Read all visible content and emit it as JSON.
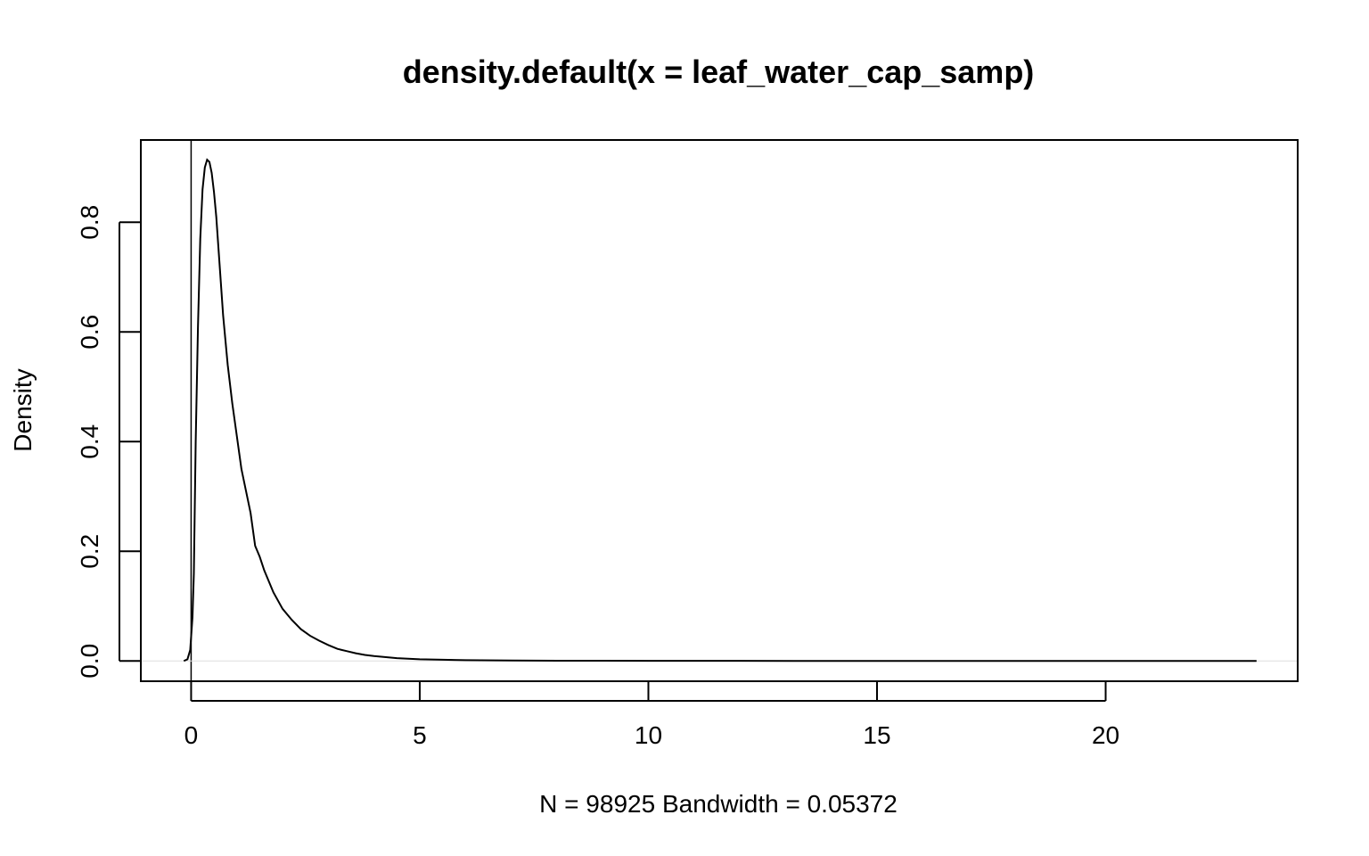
{
  "chart_data": {
    "type": "line",
    "title": "density.default(x = leaf_water_cap_samp)",
    "xlabel": "N = 98925   Bandwidth = 0.05372",
    "ylabel": "Density",
    "xlim": [
      -1.1,
      24.2
    ],
    "ylim": [
      -0.037,
      0.95
    ],
    "x_ticks": [
      0,
      5,
      10,
      15,
      20
    ],
    "x_tick_labels": [
      "0",
      "5",
      "10",
      "15",
      "20"
    ],
    "y_ticks": [
      0.0,
      0.2,
      0.4,
      0.6,
      0.8
    ],
    "y_tick_labels": [
      "0.0",
      "0.2",
      "0.4",
      "0.6",
      "0.8"
    ],
    "grid": false,
    "legend": "none",
    "reference_lines": {
      "vertical_at_x": 0,
      "horizontal_at_y": 0
    },
    "series": [
      {
        "x": [
          -0.16,
          -0.08,
          -0.02,
          0.03,
          0.06,
          0.1,
          0.15,
          0.2,
          0.25,
          0.3,
          0.35,
          0.4,
          0.45,
          0.5,
          0.55,
          0.6,
          0.7,
          0.8,
          0.9,
          1.0,
          1.1,
          1.2,
          1.3,
          1.4,
          1.5,
          1.6,
          1.8,
          2.0,
          2.2,
          2.4,
          2.6,
          2.8,
          3.0,
          3.2,
          3.4,
          3.6,
          3.8,
          4.0,
          4.5,
          5.0,
          5.5,
          6.0,
          7.0,
          8.0,
          9.0,
          10.0,
          12.0,
          15.0,
          18.0,
          21.0,
          23.3
        ],
        "y": [
          0.0,
          0.003,
          0.02,
          0.08,
          0.16,
          0.4,
          0.61,
          0.77,
          0.86,
          0.9,
          0.914,
          0.91,
          0.89,
          0.855,
          0.81,
          0.75,
          0.63,
          0.54,
          0.47,
          0.41,
          0.35,
          0.31,
          0.27,
          0.21,
          0.19,
          0.165,
          0.125,
          0.095,
          0.075,
          0.058,
          0.046,
          0.037,
          0.029,
          0.022,
          0.018,
          0.014,
          0.011,
          0.009,
          0.005,
          0.003,
          0.0022,
          0.0015,
          0.0009,
          0.0005,
          0.0003,
          0.0002,
          0.0001,
          5e-05,
          2e-05,
          1e-05,
          0.0
        ]
      }
    ]
  }
}
